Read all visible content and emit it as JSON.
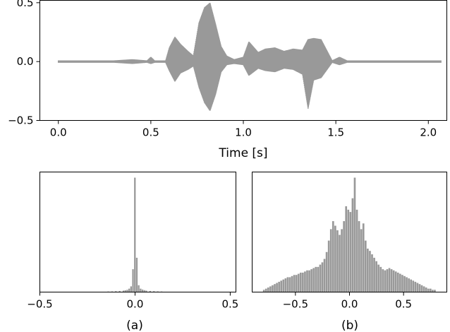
{
  "chart_data": [
    {
      "type": "line",
      "xlabel": "Time [s]",
      "ylabel": "",
      "xlim": [
        -0.1,
        2.1
      ],
      "ylim": [
        -0.5,
        0.52
      ],
      "xticks": [
        0.0,
        0.5,
        1.0,
        1.5,
        2.0
      ],
      "xtick_labels": [
        "0.0",
        "0.5",
        "1.0",
        "1.5",
        "2.0"
      ],
      "yticks": [
        -0.5,
        0.0,
        0.5
      ],
      "ytick_labels": [
        "−0.5",
        "0.0",
        "0.5"
      ],
      "grid": false,
      "color": "#999999",
      "series": [
        {
          "t": [
            0.0,
            0.1,
            0.2,
            0.3,
            0.4,
            0.48,
            0.5,
            0.52,
            0.58,
            0.6,
            0.63,
            0.66,
            0.7,
            0.73,
            0.76,
            0.79,
            0.82,
            0.85,
            0.88,
            0.91,
            0.95,
            1.0,
            1.03,
            1.08,
            1.12,
            1.17,
            1.22,
            1.27,
            1.32,
            1.35,
            1.38,
            1.42,
            1.48,
            1.52,
            1.56,
            1.62,
            1.7,
            1.8,
            1.9,
            2.0,
            2.07
          ],
          "env_max": [
            0.01,
            0.01,
            0.01,
            0.01,
            0.02,
            0.01,
            0.04,
            0.01,
            0.01,
            0.12,
            0.21,
            0.15,
            0.09,
            0.05,
            0.33,
            0.46,
            0.5,
            0.32,
            0.13,
            0.05,
            0.02,
            0.04,
            0.17,
            0.08,
            0.11,
            0.12,
            0.09,
            0.11,
            0.1,
            0.19,
            0.2,
            0.19,
            0.01,
            0.04,
            0.01,
            0.01,
            0.01,
            0.01,
            0.01,
            0.01,
            0.01
          ],
          "env_min": [
            -0.01,
            -0.01,
            -0.01,
            -0.01,
            -0.02,
            -0.01,
            -0.02,
            -0.01,
            -0.01,
            -0.08,
            -0.17,
            -0.1,
            -0.07,
            -0.04,
            -0.22,
            -0.35,
            -0.42,
            -0.28,
            -0.09,
            -0.03,
            -0.02,
            -0.03,
            -0.12,
            -0.06,
            -0.08,
            -0.09,
            -0.06,
            -0.07,
            -0.11,
            -0.4,
            -0.16,
            -0.14,
            -0.01,
            -0.03,
            -0.01,
            -0.01,
            -0.01,
            -0.01,
            -0.01,
            -0.01,
            -0.01
          ]
        }
      ]
    },
    {
      "type": "bar",
      "subtitle": "(a)",
      "xlim": [
        -0.5,
        0.53
      ],
      "xticks": [
        -0.5,
        0.0,
        0.5
      ],
      "xtick_labels": [
        "−0.5",
        "0.0",
        "0.5"
      ],
      "yticks": [],
      "grid": false,
      "color": "#999999",
      "bin_width": 0.01,
      "bin_centers": [
        -0.14,
        -0.12,
        -0.1,
        -0.08,
        -0.06,
        -0.05,
        -0.04,
        -0.03,
        -0.02,
        -0.01,
        0.0,
        0.01,
        0.02,
        0.03,
        0.04,
        0.05,
        0.06,
        0.08,
        0.1,
        0.12,
        0.14
      ],
      "counts": [
        0.005,
        0.006,
        0.008,
        0.01,
        0.013,
        0.016,
        0.02,
        0.03,
        0.05,
        0.2,
        1.0,
        0.3,
        0.06,
        0.03,
        0.022,
        0.017,
        0.013,
        0.01,
        0.008,
        0.006,
        0.005
      ]
    },
    {
      "type": "bar",
      "subtitle": "(b)",
      "xlim": [
        -0.9,
        0.9
      ],
      "xticks": [
        -0.5,
        0.0,
        0.5
      ],
      "xtick_labels": [
        "−0.5",
        "0.0",
        "0.5"
      ],
      "yticks": [],
      "grid": false,
      "color": "#999999",
      "bin_width": 0.02,
      "bin_centers": [
        -0.79,
        -0.77,
        -0.75,
        -0.73,
        -0.71,
        -0.69,
        -0.67,
        -0.65,
        -0.63,
        -0.61,
        -0.59,
        -0.57,
        -0.55,
        -0.53,
        -0.51,
        -0.49,
        -0.47,
        -0.45,
        -0.43,
        -0.41,
        -0.39,
        -0.37,
        -0.35,
        -0.33,
        -0.31,
        -0.29,
        -0.27,
        -0.25,
        -0.23,
        -0.21,
        -0.19,
        -0.17,
        -0.15,
        -0.13,
        -0.11,
        -0.09,
        -0.07,
        -0.05,
        -0.03,
        -0.01,
        0.01,
        0.03,
        0.05,
        0.07,
        0.09,
        0.11,
        0.13,
        0.15,
        0.17,
        0.19,
        0.21,
        0.23,
        0.25,
        0.27,
        0.29,
        0.31,
        0.33,
        0.35,
        0.37,
        0.39,
        0.41,
        0.43,
        0.45,
        0.47,
        0.49,
        0.51,
        0.53,
        0.55,
        0.57,
        0.59,
        0.61,
        0.63,
        0.65,
        0.67,
        0.69,
        0.71,
        0.73,
        0.75,
        0.77,
        0.79
      ],
      "counts": [
        0.02,
        0.03,
        0.04,
        0.05,
        0.06,
        0.07,
        0.08,
        0.09,
        0.1,
        0.11,
        0.12,
        0.13,
        0.13,
        0.14,
        0.15,
        0.15,
        0.16,
        0.17,
        0.17,
        0.18,
        0.19,
        0.19,
        0.2,
        0.21,
        0.22,
        0.22,
        0.24,
        0.26,
        0.29,
        0.35,
        0.45,
        0.55,
        0.62,
        0.58,
        0.54,
        0.5,
        0.55,
        0.62,
        0.75,
        0.72,
        0.7,
        0.82,
        1.0,
        0.72,
        0.62,
        0.55,
        0.6,
        0.45,
        0.38,
        0.36,
        0.33,
        0.3,
        0.27,
        0.24,
        0.22,
        0.2,
        0.19,
        0.2,
        0.21,
        0.2,
        0.19,
        0.18,
        0.17,
        0.16,
        0.15,
        0.14,
        0.13,
        0.12,
        0.11,
        0.1,
        0.09,
        0.08,
        0.07,
        0.06,
        0.05,
        0.04,
        0.03,
        0.03,
        0.02,
        0.02
      ]
    }
  ]
}
